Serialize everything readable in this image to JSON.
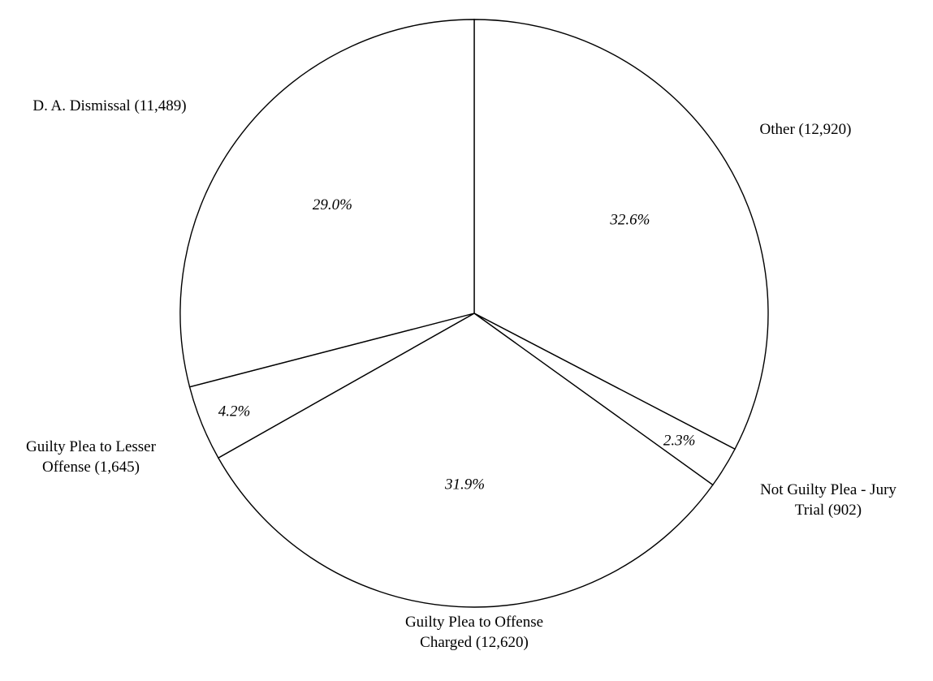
{
  "chart_data": {
    "type": "pie",
    "title": "",
    "slices": [
      {
        "label_lines": [
          "Other (12,920)"
        ],
        "value": 12920,
        "percent_label": "32.6%"
      },
      {
        "label_lines": [
          "Not Guilty Plea - Jury",
          "Trial (902)"
        ],
        "value": 902,
        "percent_label": "2.3%"
      },
      {
        "label_lines": [
          "Guilty Plea to Offense",
          "Charged (12,620)"
        ],
        "value": 12620,
        "percent_label": "31.9%"
      },
      {
        "label_lines": [
          "Guilty Plea to Lesser",
          "Offense (1,645)"
        ],
        "value": 1645,
        "percent_label": "4.2%"
      },
      {
        "label_lines": [
          "D. A. Dismissal (11,489)"
        ],
        "value": 11489,
        "percent_label": "29.0%"
      }
    ],
    "start": "12 o'clock",
    "direction": "clockwise",
    "legend": "none",
    "colors": {
      "fill": "#ffffff",
      "stroke": "#000000"
    }
  }
}
